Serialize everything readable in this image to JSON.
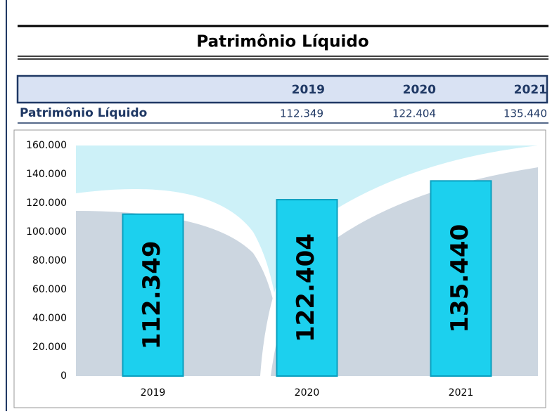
{
  "title": "Patrimônio Líquido",
  "table": {
    "header": [
      "2019",
      "2020",
      "2021"
    ],
    "rows": [
      [
        "Patrimônio Líquido",
        "112.349",
        "122.404",
        "135.440"
      ]
    ]
  },
  "chart_data": {
    "type": "bar",
    "categories": [
      "2019",
      "2020",
      "2021"
    ],
    "values": [
      112349,
      122404,
      135440
    ],
    "value_labels": [
      "112.349",
      "122.404",
      "135.440"
    ],
    "color": "#1cd0ee",
    "ylim": [
      0,
      160000
    ],
    "yticks": [
      0,
      {
        "value": 20000,
        "label": "20.000"
      },
      {
        "value": 40000,
        "label": "40.000"
      },
      {
        "value": 60000,
        "label": "60.000"
      },
      {
        "value": 80000,
        "label": "80.000"
      },
      {
        "value": 100000,
        "label": "100.000"
      },
      {
        "value": 120000,
        "label": "120.000"
      },
      {
        "value": 140000,
        "label": "140.000"
      },
      {
        "value": 160000,
        "label": "160.000"
      }
    ]
  }
}
